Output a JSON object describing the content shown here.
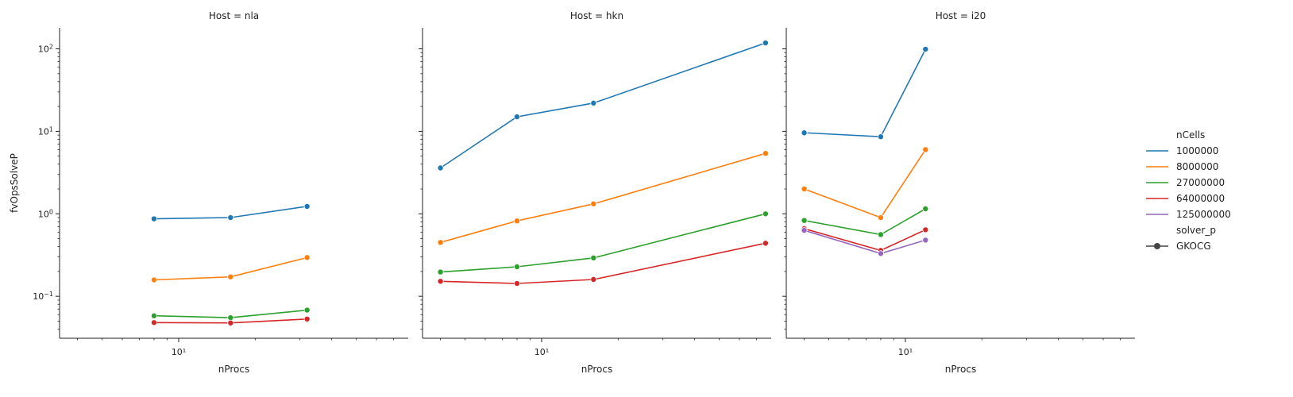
{
  "chart_data": {
    "type": "line",
    "x_label": "nProcs",
    "y_label": "fvOpsSolveP",
    "x_scale": "log",
    "y_scale": "log",
    "x_range": [
      3.4,
      80
    ],
    "y_range": [
      0.031,
      180
    ],
    "x_tick_label": "10¹",
    "y_tick_labels": [
      {
        "base": "10",
        "exp": "−1"
      },
      {
        "base": "10",
        "exp": "0"
      },
      {
        "base": "10",
        "exp": "1"
      },
      {
        "base": "10",
        "exp": "2"
      }
    ],
    "legend": {
      "placement": "right",
      "hue_title": "nCells",
      "style_title": "solver_p",
      "style_entries": [
        "GKOCG"
      ],
      "hue_entries": [
        {
          "label": "1000000",
          "color": "#1f77b4"
        },
        {
          "label": "8000000",
          "color": "#ff7f0e"
        },
        {
          "label": "27000000",
          "color": "#2ca02c"
        },
        {
          "label": "64000000",
          "color": "#d62728"
        },
        {
          "label": "125000000",
          "color": "#9467bd"
        }
      ]
    },
    "facets": [
      {
        "title": "Host = nla",
        "series": [
          {
            "name": "1000000",
            "x": [
              8,
              16,
              32
            ],
            "y": [
              0.87,
              0.9,
              1.23
            ]
          },
          {
            "name": "8000000",
            "x": [
              8,
              16,
              32
            ],
            "y": [
              0.158,
              0.172,
              0.295
            ]
          },
          {
            "name": "27000000",
            "x": [
              8,
              16,
              32
            ],
            "y": [
              0.058,
              0.055,
              0.068
            ]
          },
          {
            "name": "64000000",
            "x": [
              8,
              16,
              32
            ],
            "y": [
              0.048,
              0.0475,
              0.053
            ]
          }
        ]
      },
      {
        "title": "Host = hkn",
        "series": [
          {
            "name": "1000000",
            "x": [
              4,
              8,
              16,
              76
            ],
            "y": [
              3.6,
              15,
              22,
              118
            ]
          },
          {
            "name": "8000000",
            "x": [
              4,
              8,
              16,
              76
            ],
            "y": [
              0.45,
              0.82,
              1.32,
              5.4
            ]
          },
          {
            "name": "27000000",
            "x": [
              4,
              8,
              16,
              76
            ],
            "y": [
              0.197,
              0.228,
              0.292,
              1.0
            ]
          },
          {
            "name": "64000000",
            "x": [
              4,
              8,
              16,
              76
            ],
            "y": [
              0.152,
              0.143,
              0.16,
              0.44
            ]
          }
        ]
      },
      {
        "title": "Host = i20",
        "series": [
          {
            "name": "1000000",
            "x": [
              4,
              8,
              12
            ],
            "y": [
              9.6,
              8.6,
              99
            ]
          },
          {
            "name": "8000000",
            "x": [
              4,
              8,
              12
            ],
            "y": [
              2.0,
              0.9,
              6.0
            ]
          },
          {
            "name": "27000000",
            "x": [
              4,
              8,
              12
            ],
            "y": [
              0.83,
              0.56,
              1.15
            ]
          },
          {
            "name": "64000000",
            "x": [
              4,
              8,
              12
            ],
            "y": [
              0.66,
              0.36,
              0.64
            ]
          },
          {
            "name": "125000000",
            "x": [
              4,
              8,
              12
            ],
            "y": [
              0.63,
              0.33,
              0.48
            ]
          }
        ]
      }
    ]
  }
}
